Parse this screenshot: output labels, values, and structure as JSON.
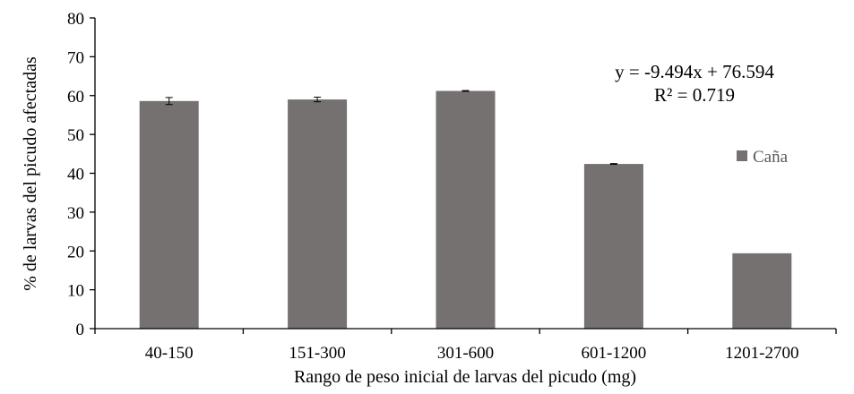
{
  "chart_data": {
    "type": "bar",
    "categories": [
      "40-150",
      "151-300",
      "301-600",
      "601-1200",
      "1201-2700"
    ],
    "series": [
      {
        "name": "Caña",
        "values": [
          58.6,
          59.0,
          61.2,
          42.4,
          19.4
        ],
        "errors": [
          0.9,
          0.6,
          0.1,
          0.1,
          0.0
        ],
        "color": "#767171"
      }
    ],
    "xlabel": "Rango de peso inicial de larvas del picudo (mg)",
    "ylabel": "% de larvas del picudo afectadas",
    "ylim": [
      0,
      80
    ],
    "yticks": [
      0,
      10,
      20,
      30,
      40,
      50,
      60,
      70,
      80
    ],
    "grid": false,
    "legend_position": "right",
    "annotations": [
      "y = -9.494x + 76.594",
      "R² = 0.719"
    ]
  }
}
